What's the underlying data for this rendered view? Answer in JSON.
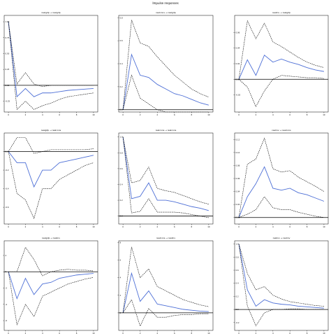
{
  "title": "Impulse responses",
  "chart_data": [
    {
      "type": "line",
      "title": "realgdp → realgdp",
      "x": [
        0,
        1,
        2,
        3,
        4,
        5,
        6,
        7,
        8,
        9,
        10
      ],
      "series": [
        {
          "values": [
            1.0,
            -0.18,
            -0.05,
            -0.18,
            -0.12,
            -0.12,
            -0.1,
            -0.08,
            -0.07,
            -0.06,
            -0.05
          ]
        },
        {
          "values": [
            1.0,
            -0.38,
            -0.25,
            -0.38,
            -0.32,
            -0.28,
            -0.22,
            -0.18,
            -0.16,
            -0.14,
            -0.12
          ],
          "style": "dashed"
        },
        {
          "values": [
            1.0,
            0.02,
            0.2,
            0.02,
            -0.02,
            0.0,
            0.0,
            0.0,
            0.0,
            0.0,
            0.0
          ],
          "style": "dashed"
        }
      ],
      "ylim": [
        -0.42,
        1.1
      ],
      "yticks": [
        1.0,
        0.75,
        0.5,
        0.25,
        0.0,
        -0.25
      ],
      "ytick_labels": [
        "1.00",
        "0.75",
        "0.50",
        "0.25",
        "0.00",
        "-0.25"
      ],
      "xticks": [
        0,
        2,
        4,
        6,
        8,
        10
      ]
    },
    {
      "type": "line",
      "title": "realcons → realgdp",
      "x": [
        0,
        1,
        2,
        3,
        4,
        5,
        6,
        7,
        8,
        9,
        10
      ],
      "series": [
        {
          "values": [
            0.0,
            0.48,
            0.3,
            0.28,
            0.22,
            0.18,
            0.14,
            0.12,
            0.09,
            0.06,
            0.04
          ]
        },
        {
          "values": [
            0.0,
            0.78,
            0.58,
            0.55,
            0.46,
            0.38,
            0.3,
            0.24,
            0.18,
            0.14,
            0.11
          ],
          "style": "dashed"
        },
        {
          "values": [
            0.0,
            0.3,
            0.1,
            0.05,
            0.0,
            -0.02,
            -0.02,
            -0.02,
            -0.02,
            -0.02,
            -0.02
          ],
          "style": "dashed"
        }
      ],
      "ylim": [
        -0.02,
        0.82
      ],
      "yticks": [
        0.0,
        0.2,
        0.4,
        0.6,
        0.8
      ],
      "ytick_labels": [
        "0.0",
        "0.2",
        "0.4",
        "0.6",
        "0.8"
      ],
      "xticks": [
        0,
        2,
        4,
        6,
        8,
        10
      ]
    },
    {
      "type": "line",
      "title": "realinv → realgdp",
      "x": [
        0,
        1,
        2,
        3,
        4,
        5,
        6,
        7,
        8,
        9,
        10
      ],
      "series": [
        {
          "values": [
            0.0,
            0.025,
            0.005,
            0.031,
            0.022,
            0.026,
            0.022,
            0.019,
            0.015,
            0.012,
            0.01
          ]
        },
        {
          "values": [
            0.0,
            0.075,
            0.052,
            0.072,
            0.048,
            0.042,
            0.035,
            0.028,
            0.022,
            0.018,
            0.015
          ],
          "style": "dashed"
        },
        {
          "values": [
            0.0,
            -0.01,
            -0.035,
            -0.015,
            0.0,
            0.005,
            0.004,
            0.003,
            0.002,
            0.002,
            0.001
          ],
          "style": "dashed"
        }
      ],
      "ylim": [
        -0.042,
        0.082
      ],
      "yticks": [
        0.06,
        0.04,
        0.02,
        0.0,
        -0.02
      ],
      "ytick_labels": [
        "0.06",
        "0.04",
        "0.02",
        "0.00",
        "-0.02"
      ],
      "xticks": [
        0,
        2,
        4,
        6,
        8,
        10
      ]
    },
    {
      "type": "line",
      "title": "realgdp → realcons",
      "x": [
        0,
        1,
        2,
        3,
        4,
        5,
        6,
        7,
        8,
        9,
        10
      ],
      "series": [
        {
          "values": [
            0.0,
            -0.12,
            -0.12,
            -0.38,
            -0.2,
            -0.2,
            -0.12,
            -0.1,
            -0.08,
            -0.06,
            -0.04
          ]
        },
        {
          "values": [
            0.0,
            0.15,
            0.15,
            -0.02,
            0.0,
            0.02,
            0.02,
            0.02,
            0.02,
            0.02,
            0.03
          ],
          "style": "dashed"
        },
        {
          "values": [
            0.0,
            -0.45,
            -0.52,
            -0.72,
            -0.4,
            -0.4,
            -0.3,
            -0.25,
            -0.2,
            -0.15,
            -0.12
          ],
          "style": "dashed"
        }
      ],
      "ylim": [
        -0.78,
        0.2
      ],
      "yticks": [
        0.0,
        -0.2,
        -0.4,
        -0.6
      ],
      "ytick_labels": [
        "0.0",
        "-0.2",
        "-0.4",
        "-0.6"
      ],
      "xticks": [
        0,
        2,
        4,
        6,
        8,
        10
      ]
    },
    {
      "type": "line",
      "title": "realcons → realcons",
      "x": [
        0,
        1,
        2,
        3,
        4,
        5,
        6,
        7,
        8,
        9,
        10
      ],
      "series": [
        {
          "values": [
            1.0,
            0.22,
            0.25,
            0.42,
            0.2,
            0.2,
            0.18,
            0.15,
            0.12,
            0.1,
            0.07
          ]
        },
        {
          "values": [
            1.0,
            0.42,
            0.45,
            0.62,
            0.35,
            0.32,
            0.3,
            0.26,
            0.22,
            0.18,
            0.15
          ],
          "style": "dashed"
        },
        {
          "values": [
            1.0,
            0.04,
            0.06,
            0.22,
            0.05,
            0.05,
            0.05,
            0.04,
            0.02,
            0.0,
            -0.02
          ],
          "style": "dashed"
        }
      ],
      "ylim": [
        -0.1,
        1.05
      ],
      "yticks": [
        1.0,
        0.8,
        0.6,
        0.4,
        0.2,
        0.0
      ],
      "ytick_labels": [
        "1.0",
        "0.8",
        "0.6",
        "0.4",
        "0.2",
        "0.0"
      ],
      "xticks": [
        0,
        2,
        4,
        6,
        8,
        10
      ]
    },
    {
      "type": "line",
      "title": "realinv → realcons",
      "x": [
        0,
        1,
        2,
        3,
        4,
        5,
        6,
        7,
        8,
        9,
        10
      ],
      "series": [
        {
          "values": [
            0.0,
            0.032,
            0.052,
            0.078,
            0.045,
            0.042,
            0.045,
            0.038,
            0.035,
            0.03,
            0.025
          ]
        },
        {
          "values": [
            0.0,
            0.082,
            0.09,
            0.122,
            0.075,
            0.07,
            0.072,
            0.062,
            0.055,
            0.048,
            0.04
          ],
          "style": "dashed"
        },
        {
          "values": [
            0.0,
            0.005,
            0.012,
            0.032,
            0.015,
            0.012,
            0.012,
            0.008,
            0.005,
            0.002,
            0.0
          ],
          "style": "dashed"
        }
      ],
      "ylim": [
        -0.01,
        0.13
      ],
      "yticks": [
        0.12,
        0.1,
        0.08,
        0.06,
        0.04,
        0.02,
        0.0
      ],
      "ytick_labels": [
        "0.12",
        "0.10",
        "0.08",
        "0.06",
        "0.04",
        "0.02",
        "0.00"
      ],
      "xticks": [
        0,
        2,
        4,
        6,
        8,
        10
      ]
    },
    {
      "type": "line",
      "title": "realgdp → realinv",
      "x": [
        0,
        1,
        2,
        3,
        4,
        5,
        6,
        7,
        8,
        9,
        10
      ],
      "series": [
        {
          "values": [
            0.0,
            -3.3,
            -0.8,
            -2.8,
            -1.5,
            -1.3,
            -0.8,
            -0.6,
            -0.4,
            -0.3,
            -0.2
          ]
        },
        {
          "values": [
            0.0,
            0.0,
            3.0,
            1.5,
            -0.5,
            0.0,
            0.2,
            0.3,
            0.2,
            0.2,
            0.1
          ],
          "style": "dashed"
        },
        {
          "values": [
            0.0,
            -6.5,
            -4.0,
            -5.5,
            -3.0,
            -2.5,
            -2.0,
            -1.5,
            -1.2,
            -0.9,
            -0.7
          ],
          "style": "dashed"
        }
      ],
      "ylim": [
        -7.2,
        3.8
      ],
      "yticks": [
        2,
        0,
        -2,
        -4,
        -6
      ],
      "ytick_labels": [
        "2",
        "0",
        "-2",
        "-4",
        "-6"
      ],
      "xticks": [
        0,
        2,
        4,
        6,
        8,
        10
      ]
    },
    {
      "type": "line",
      "title": "realcons → realinv",
      "x": [
        0,
        1,
        2,
        3,
        4,
        5,
        6,
        7,
        8,
        9,
        10
      ],
      "series": [
        {
          "values": [
            0.0,
            4.5,
            1.3,
            2.5,
            1.0,
            0.8,
            0.6,
            0.4,
            0.3,
            0.2,
            0.15
          ]
        },
        {
          "values": [
            0.0,
            7.5,
            4.0,
            5.0,
            3.0,
            2.5,
            2.0,
            1.5,
            1.2,
            0.9,
            0.7
          ],
          "style": "dashed"
        },
        {
          "values": [
            0.0,
            1.5,
            -1.5,
            0.5,
            -0.5,
            -0.5,
            -0.3,
            -0.2,
            -0.2,
            -0.1,
            -0.1
          ],
          "style": "dashed"
        }
      ],
      "ylim": [
        -2.0,
        8.2
      ],
      "yticks": [
        8,
        6,
        4,
        2,
        0
      ],
      "ytick_labels": [
        "8",
        "6",
        "4",
        "2",
        "0"
      ],
      "xticks": [
        0,
        2,
        4,
        6,
        8,
        10
      ]
    },
    {
      "type": "line",
      "title": "realinv → realinv",
      "x": [
        0,
        1,
        2,
        3,
        4,
        5,
        6,
        7,
        8,
        9,
        10
      ],
      "series": [
        {
          "values": [
            1.0,
            0.3,
            0.05,
            0.15,
            0.1,
            0.08,
            0.07,
            0.05,
            0.04,
            0.03,
            0.02
          ]
        },
        {
          "values": [
            1.0,
            0.55,
            0.3,
            0.35,
            0.22,
            0.16,
            0.12,
            0.1,
            0.08,
            0.06,
            0.05
          ],
          "style": "dashed"
        },
        {
          "values": [
            1.0,
            0.05,
            -0.25,
            -0.05,
            0.0,
            0.0,
            0.01,
            0.01,
            0.0,
            0.0,
            0.0
          ],
          "style": "dashed"
        }
      ],
      "ylim": [
        -0.32,
        1.05
      ],
      "yticks": [
        1.0,
        0.8,
        0.6,
        0.4,
        0.2,
        0.0,
        -0.2
      ],
      "ytick_labels": [
        "1.0",
        "0.8",
        "0.6",
        "0.4",
        "0.2",
        "0.0",
        "-0.2"
      ],
      "xticks": [
        0,
        2,
        4,
        6,
        8,
        10
      ]
    }
  ],
  "colors": {
    "irf": "#4d6fd6",
    "band": "#000000",
    "axis": "#000000"
  }
}
